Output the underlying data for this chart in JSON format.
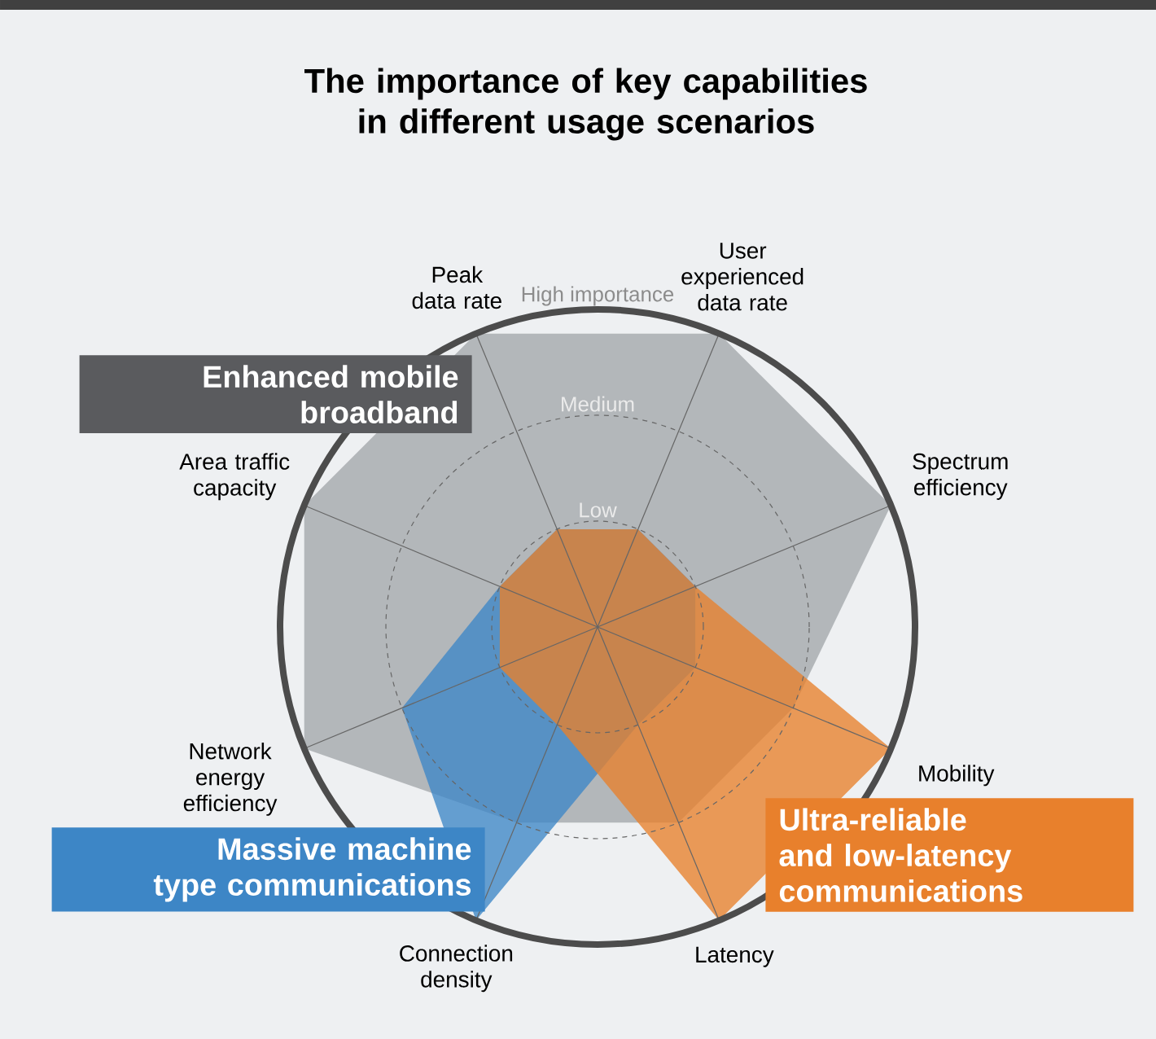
{
  "chart_data": {
    "type": "radar",
    "title": "The importance of key capabilities in different usage scenarios",
    "categories": [
      "User experienced data rate",
      "Spectrum efficiency",
      "Mobility",
      "Latency",
      "Connection density",
      "Network energy efficiency",
      "Area traffic capacity",
      "Peak data rate"
    ],
    "ylim": [
      0,
      3
    ],
    "yticks": [
      {
        "value": 1,
        "label": "Low"
      },
      {
        "value": 2,
        "label": "Medium"
      },
      {
        "value": 3,
        "label": "High importance"
      }
    ],
    "grid": true,
    "series": [
      {
        "name": "Enhanced mobile broadband",
        "color": "#a3a6aa",
        "values": [
          3,
          3,
          2,
          2,
          2,
          3,
          3,
          3
        ]
      },
      {
        "name": "Massive machine type communications",
        "color": "#3d86c6",
        "values": [
          1,
          1,
          1,
          1,
          3,
          2,
          1,
          1
        ]
      },
      {
        "name": "Ultra-reliable and low-latency communications",
        "color": "#e8802c",
        "values": [
          1,
          1,
          3,
          3,
          1,
          1,
          1,
          1
        ]
      }
    ]
  }
}
